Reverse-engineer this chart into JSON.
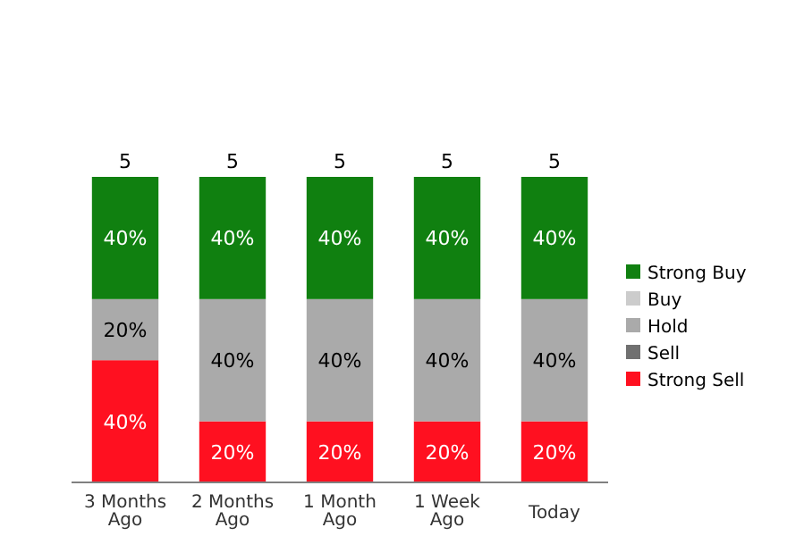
{
  "chart_data": {
    "type": "bar",
    "stacked": true,
    "categories": [
      "3 Months Ago",
      "2 Months Ago",
      "1 Month Ago",
      "1 Week Ago",
      "Today"
    ],
    "series": [
      {
        "name": "Strong Sell",
        "color": "#ff1020",
        "values": [
          40,
          20,
          20,
          20,
          20
        ],
        "value_labels": [
          "40%",
          "20%",
          "20%",
          "20%",
          "20%"
        ]
      },
      {
        "name": "Sell",
        "color": "#707070",
        "values": [
          0,
          0,
          0,
          0,
          0
        ],
        "value_labels": [
          null,
          null,
          null,
          null,
          null
        ]
      },
      {
        "name": "Hold",
        "color": "#aaaaaa",
        "values": [
          20,
          40,
          40,
          40,
          40
        ],
        "value_labels": [
          "20%",
          "40%",
          "40%",
          "40%",
          "40%"
        ]
      },
      {
        "name": "Buy",
        "color": "#cccccc",
        "values": [
          0,
          0,
          0,
          0,
          0
        ],
        "value_labels": [
          null,
          null,
          null,
          null,
          null
        ]
      },
      {
        "name": "Strong Buy",
        "color": "#108010",
        "values": [
          40,
          40,
          40,
          40,
          40
        ],
        "value_labels": [
          "40%",
          "40%",
          "40%",
          "40%",
          "40%"
        ]
      }
    ],
    "annotations": [
      {
        "text": "5",
        "x": "3 Months Ago",
        "y": 100
      },
      {
        "text": "5",
        "x": "2 Months Ago",
        "y": 100
      },
      {
        "text": "5",
        "x": "1 Month Ago",
        "y": 100
      },
      {
        "text": "5",
        "x": "1 Week Ago",
        "y": 100
      },
      {
        "text": "5",
        "x": "Today",
        "y": 100
      }
    ],
    "legend": "right"
  }
}
